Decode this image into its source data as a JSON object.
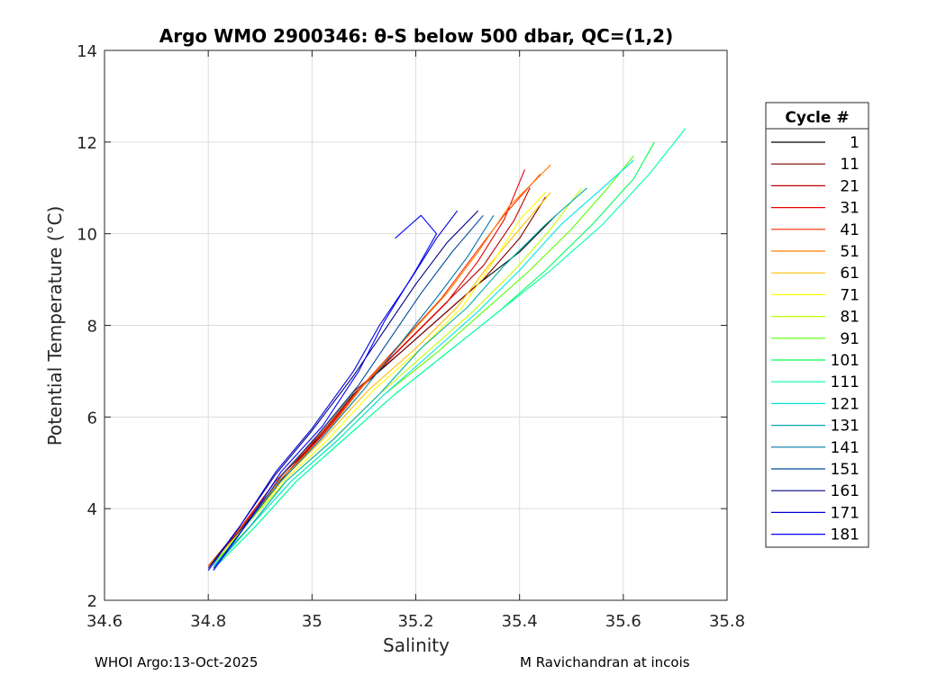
{
  "chart_data": {
    "type": "line",
    "title": "Argo WMO 2900346: θ-S below 500 dbar,  QC=(1,2)",
    "xlabel": "Salinity",
    "ylabel": "Potential Temperature (°C)",
    "xlim": [
      34.6,
      35.8
    ],
    "ylim": [
      2,
      14
    ],
    "xticks": [
      34.6,
      34.8,
      35,
      35.2,
      35.4,
      35.6,
      35.8
    ],
    "xtick_labels": [
      "34.6",
      "34.8",
      "35",
      "35.2",
      "35.4",
      "35.6",
      "35.8"
    ],
    "yticks": [
      2,
      4,
      6,
      8,
      10,
      12,
      14
    ],
    "ytick_labels": [
      "2",
      "4",
      "6",
      "8",
      "10",
      "12",
      "14"
    ],
    "grid": true,
    "legend": {
      "title": "Cycle #",
      "placement": "right",
      "entries": [
        {
          "label": "1",
          "color": "#000000"
        },
        {
          "label": "11",
          "color": "#7f0000"
        },
        {
          "label": "21",
          "color": "#bf0000"
        },
        {
          "label": "31",
          "color": "#e60000"
        },
        {
          "label": "41",
          "color": "#ff2a00"
        },
        {
          "label": "51",
          "color": "#ff7f00"
        },
        {
          "label": "61",
          "color": "#ffbf00"
        },
        {
          "label": "71",
          "color": "#ffff00"
        },
        {
          "label": "81",
          "color": "#bfff00"
        },
        {
          "label": "91",
          "color": "#55ff00"
        },
        {
          "label": "101",
          "color": "#00ff55"
        },
        {
          "label": "111",
          "color": "#00ffaa"
        },
        {
          "label": "121",
          "color": "#00e5e5"
        },
        {
          "label": "131",
          "color": "#00aaaa"
        },
        {
          "label": "141",
          "color": "#0077aa"
        },
        {
          "label": "151",
          "color": "#004c99"
        },
        {
          "label": "161",
          "color": "#000080"
        },
        {
          "label": "171",
          "color": "#0000d9"
        },
        {
          "label": "181",
          "color": "#0000ff"
        }
      ]
    },
    "series": [
      {
        "name": "1",
        "points": [
          [
            34.8,
            2.75
          ],
          [
            34.86,
            3.5
          ],
          [
            34.93,
            4.5
          ],
          [
            35.0,
            5.4
          ],
          [
            35.08,
            6.5
          ],
          [
            35.16,
            7.3
          ],
          [
            35.24,
            8.1
          ],
          [
            35.32,
            8.9
          ],
          [
            35.4,
            9.6
          ],
          [
            35.47,
            10.4
          ]
        ]
      },
      {
        "name": "11",
        "points": [
          [
            34.8,
            2.75
          ],
          [
            34.86,
            3.55
          ],
          [
            34.93,
            4.6
          ],
          [
            35.0,
            5.45
          ],
          [
            35.08,
            6.55
          ],
          [
            35.17,
            7.4
          ],
          [
            35.25,
            8.2
          ],
          [
            35.33,
            9.0
          ],
          [
            35.4,
            9.9
          ],
          [
            35.45,
            10.8
          ]
        ]
      },
      {
        "name": "21",
        "points": [
          [
            34.8,
            2.75
          ],
          [
            34.86,
            3.55
          ],
          [
            34.93,
            4.6
          ],
          [
            35.01,
            5.5
          ],
          [
            35.09,
            6.6
          ],
          [
            35.17,
            7.5
          ],
          [
            35.25,
            8.4
          ],
          [
            35.33,
            9.3
          ],
          [
            35.39,
            10.3
          ],
          [
            35.42,
            11.0
          ]
        ]
      },
      {
        "name": "31",
        "points": [
          [
            34.8,
            2.75
          ],
          [
            34.86,
            3.55
          ],
          [
            34.94,
            4.65
          ],
          [
            35.02,
            5.6
          ],
          [
            35.1,
            6.7
          ],
          [
            35.18,
            7.6
          ],
          [
            35.26,
            8.5
          ],
          [
            35.32,
            9.4
          ],
          [
            35.37,
            10.3
          ],
          [
            35.41,
            11.4
          ]
        ]
      },
      {
        "name": "41",
        "points": [
          [
            34.8,
            2.75
          ],
          [
            34.86,
            3.55
          ],
          [
            34.93,
            4.6
          ],
          [
            35.01,
            5.55
          ],
          [
            35.09,
            6.6
          ],
          [
            35.17,
            7.6
          ],
          [
            35.25,
            8.6
          ],
          [
            35.31,
            9.5
          ],
          [
            35.37,
            10.4
          ],
          [
            35.44,
            11.3
          ]
        ]
      },
      {
        "name": "51",
        "points": [
          [
            34.8,
            2.75
          ],
          [
            34.87,
            3.6
          ],
          [
            34.94,
            4.65
          ],
          [
            35.02,
            5.55
          ],
          [
            35.1,
            6.7
          ],
          [
            35.18,
            7.7
          ],
          [
            35.26,
            8.7
          ],
          [
            35.32,
            9.6
          ],
          [
            35.38,
            10.6
          ],
          [
            35.46,
            11.5
          ]
        ]
      },
      {
        "name": "61",
        "points": [
          [
            34.81,
            2.8
          ],
          [
            34.87,
            3.6
          ],
          [
            34.94,
            4.6
          ],
          [
            35.02,
            5.5
          ],
          [
            35.11,
            6.6
          ],
          [
            35.2,
            7.5
          ],
          [
            35.28,
            8.4
          ],
          [
            35.34,
            9.3
          ],
          [
            35.4,
            10.1
          ],
          [
            35.46,
            10.9
          ]
        ]
      },
      {
        "name": "71",
        "points": [
          [
            34.81,
            2.8
          ],
          [
            34.87,
            3.6
          ],
          [
            34.94,
            4.55
          ],
          [
            35.03,
            5.5
          ],
          [
            35.12,
            6.6
          ],
          [
            35.21,
            7.5
          ],
          [
            35.29,
            8.4
          ],
          [
            35.35,
            9.4
          ],
          [
            35.4,
            10.3
          ],
          [
            35.45,
            10.9
          ]
        ]
      },
      {
        "name": "81",
        "points": [
          [
            34.81,
            2.8
          ],
          [
            34.87,
            3.6
          ],
          [
            34.95,
            4.6
          ],
          [
            35.04,
            5.5
          ],
          [
            35.13,
            6.5
          ],
          [
            35.22,
            7.4
          ],
          [
            35.31,
            8.3
          ],
          [
            35.39,
            9.2
          ],
          [
            35.46,
            10.1
          ],
          [
            35.52,
            11.0
          ]
        ]
      },
      {
        "name": "91",
        "points": [
          [
            34.81,
            2.8
          ],
          [
            34.88,
            3.6
          ],
          [
            34.96,
            4.6
          ],
          [
            35.05,
            5.5
          ],
          [
            35.14,
            6.5
          ],
          [
            35.24,
            7.4
          ],
          [
            35.33,
            8.3
          ],
          [
            35.42,
            9.2
          ],
          [
            35.5,
            10.1
          ],
          [
            35.57,
            11.0
          ],
          [
            35.62,
            11.7
          ]
        ]
      },
      {
        "name": "101",
        "points": [
          [
            34.82,
            2.8
          ],
          [
            34.89,
            3.6
          ],
          [
            34.97,
            4.6
          ],
          [
            35.06,
            5.5
          ],
          [
            35.16,
            6.5
          ],
          [
            35.26,
            7.4
          ],
          [
            35.36,
            8.3
          ],
          [
            35.45,
            9.2
          ],
          [
            35.54,
            10.2
          ],
          [
            35.62,
            11.2
          ],
          [
            35.66,
            12.0
          ]
        ]
      },
      {
        "name": "111",
        "points": [
          [
            34.82,
            2.8
          ],
          [
            34.89,
            3.6
          ],
          [
            34.97,
            4.6
          ],
          [
            35.06,
            5.5
          ],
          [
            35.16,
            6.5
          ],
          [
            35.26,
            7.4
          ],
          [
            35.36,
            8.3
          ],
          [
            35.46,
            9.2
          ],
          [
            35.56,
            10.2
          ],
          [
            35.65,
            11.3
          ],
          [
            35.72,
            12.3
          ]
        ]
      },
      {
        "name": "121",
        "points": [
          [
            34.81,
            2.75
          ],
          [
            34.88,
            3.6
          ],
          [
            34.96,
            4.6
          ],
          [
            35.05,
            5.5
          ],
          [
            35.14,
            6.5
          ],
          [
            35.23,
            7.4
          ],
          [
            35.32,
            8.3
          ],
          [
            35.4,
            9.2
          ],
          [
            35.48,
            10.2
          ],
          [
            35.56,
            11.0
          ],
          [
            35.62,
            11.6
          ]
        ]
      },
      {
        "name": "131",
        "points": [
          [
            34.81,
            2.7
          ],
          [
            34.88,
            3.6
          ],
          [
            34.95,
            4.6
          ],
          [
            35.04,
            5.5
          ],
          [
            35.13,
            6.5
          ],
          [
            35.21,
            7.5
          ],
          [
            35.3,
            8.4
          ],
          [
            35.37,
            9.3
          ],
          [
            35.45,
            10.2
          ],
          [
            35.53,
            11.0
          ]
        ]
      },
      {
        "name": "141",
        "points": [
          [
            34.81,
            2.7
          ],
          [
            34.87,
            3.6
          ],
          [
            34.94,
            4.6
          ],
          [
            35.02,
            5.55
          ],
          [
            35.1,
            6.6
          ],
          [
            35.17,
            7.6
          ],
          [
            35.24,
            8.6
          ],
          [
            35.3,
            9.5
          ],
          [
            35.35,
            10.4
          ]
        ]
      },
      {
        "name": "151",
        "points": [
          [
            34.81,
            2.7
          ],
          [
            34.87,
            3.6
          ],
          [
            34.94,
            4.7
          ],
          [
            35.01,
            5.6
          ],
          [
            35.09,
            6.7
          ],
          [
            35.15,
            7.7
          ],
          [
            35.21,
            8.7
          ],
          [
            35.27,
            9.6
          ],
          [
            35.33,
            10.4
          ]
        ]
      },
      {
        "name": "161",
        "points": [
          [
            34.8,
            2.7
          ],
          [
            34.86,
            3.6
          ],
          [
            34.93,
            4.75
          ],
          [
            35.0,
            5.7
          ],
          [
            35.08,
            6.9
          ],
          [
            35.14,
            7.9
          ],
          [
            35.2,
            8.9
          ],
          [
            35.26,
            9.8
          ],
          [
            35.32,
            10.5
          ]
        ]
      },
      {
        "name": "171",
        "points": [
          [
            34.8,
            2.65
          ],
          [
            34.86,
            3.6
          ],
          [
            34.93,
            4.8
          ],
          [
            35.0,
            5.75
          ],
          [
            35.08,
            7.0
          ],
          [
            35.13,
            8.0
          ],
          [
            35.19,
            9.0
          ],
          [
            35.24,
            9.9
          ],
          [
            35.28,
            10.5
          ]
        ]
      },
      {
        "name": "181",
        "points": [
          [
            34.81,
            2.65
          ],
          [
            34.87,
            3.6
          ],
          [
            34.94,
            4.8
          ],
          [
            35.02,
            5.8
          ],
          [
            35.09,
            7.0
          ],
          [
            35.14,
            8.1
          ],
          [
            35.2,
            9.2
          ],
          [
            35.24,
            10.0
          ],
          [
            35.21,
            10.4
          ],
          [
            35.16,
            9.9
          ]
        ]
      }
    ]
  },
  "footer": {
    "left": "WHOI Argo:13-Oct-2025",
    "right": "M Ravichandran at incois"
  }
}
